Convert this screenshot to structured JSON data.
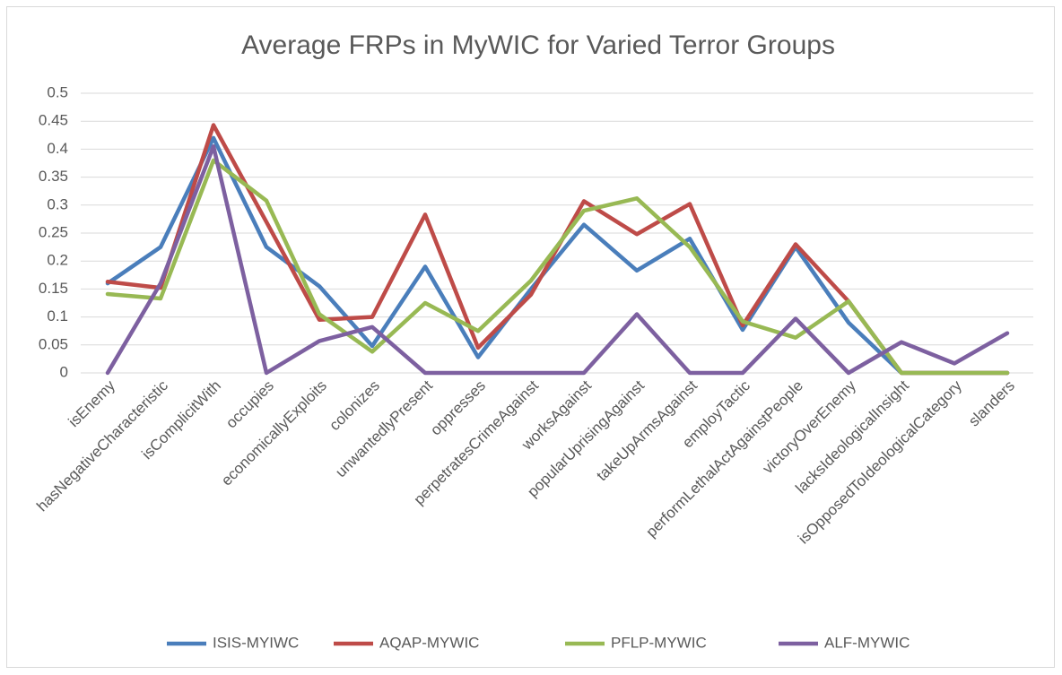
{
  "chart_data": {
    "type": "line",
    "title": "Average FRPs in MyWIC for Varied Terror Groups",
    "categories": [
      "isEnemy",
      "hasNegativeCharacteristic",
      "isComplicitWith",
      "occupies",
      "economicallyExploits",
      "colonizes",
      "unwantedlyPresent",
      "oppresses",
      "perpetratesCrimeAgainst",
      "worksAgainst",
      "popularUprisingAgainst",
      "takeUpArmsAgainst",
      "employTactic",
      "performLethalActAgainstPeople",
      "victoryOverEnemy",
      "lacksIdeologicalInsight",
      "isOpposedToIdeologicalCategory",
      "slanders"
    ],
    "series": [
      {
        "name": "ISIS-MYIWC",
        "color": "#4a7ebb",
        "values": [
          0.16,
          0.225,
          0.42,
          0.225,
          0.155,
          0.048,
          0.19,
          0.028,
          0.15,
          0.265,
          0.183,
          0.24,
          0.077,
          0.225,
          0.09,
          0,
          0,
          0
        ]
      },
      {
        "name": "AQAP-MYWIC",
        "color": "#be4b48",
        "values": [
          0.163,
          0.152,
          0.443,
          0.27,
          0.095,
          0.1,
          0.283,
          0.045,
          0.14,
          0.307,
          0.248,
          0.302,
          0.085,
          0.23,
          0.128,
          0,
          0,
          0
        ]
      },
      {
        "name": "PFLP-MYWIC",
        "color": "#98b954",
        "values": [
          0.141,
          0.133,
          0.38,
          0.308,
          0.105,
          0.038,
          0.125,
          0.075,
          0.165,
          0.29,
          0.312,
          0.225,
          0.092,
          0.063,
          0.128,
          0,
          0,
          0
        ]
      },
      {
        "name": "ALF-MYWIC",
        "color": "#7d60a0",
        "values": [
          0,
          0.16,
          0.405,
          0,
          0.057,
          0.082,
          0,
          0,
          0,
          0,
          0.105,
          0,
          0,
          0.097,
          0,
          0.055,
          0.017,
          0.071
        ]
      }
    ],
    "ylim": [
      0,
      0.5
    ],
    "yticks": [
      0,
      0.05,
      0.1,
      0.15,
      0.2,
      0.25,
      0.3,
      0.35,
      0.4,
      0.45,
      0.5
    ],
    "grid": true,
    "legend": "bottom"
  }
}
